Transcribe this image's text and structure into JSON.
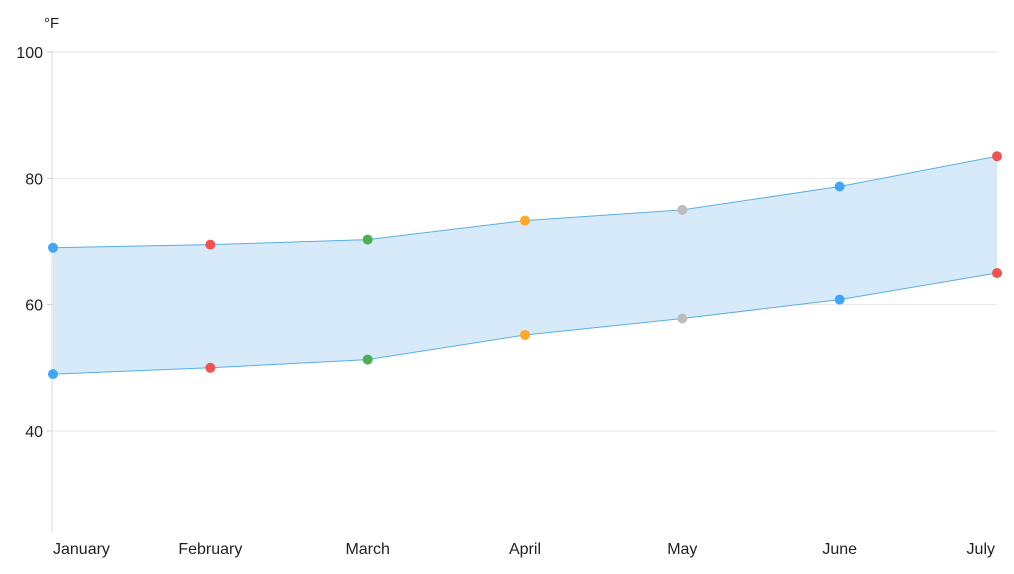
{
  "chart_data": {
    "type": "area",
    "subtype": "range-area",
    "y_unit_label": "°F",
    "categories": [
      "January",
      "February",
      "March",
      "April",
      "May",
      "June",
      "July"
    ],
    "series": [
      {
        "high": [
          69,
          69.5,
          70.3,
          73.3,
          75,
          78.7,
          83.5
        ],
        "low": [
          49,
          50,
          51.3,
          55.2,
          57.8,
          60.8,
          65
        ]
      }
    ],
    "point_colors": [
      "#42a5f5",
      "#ef5350",
      "#4caf50",
      "#ffa726",
      "#bdbdbd",
      "#42a5f5",
      "#ef5350"
    ],
    "fill_color": "#d6eaf9",
    "line_color": "#5aaee8",
    "ylim": [
      24,
      100
    ],
    "y_ticks": [
      40,
      60,
      80,
      100
    ],
    "grid": true,
    "legend": "none"
  }
}
